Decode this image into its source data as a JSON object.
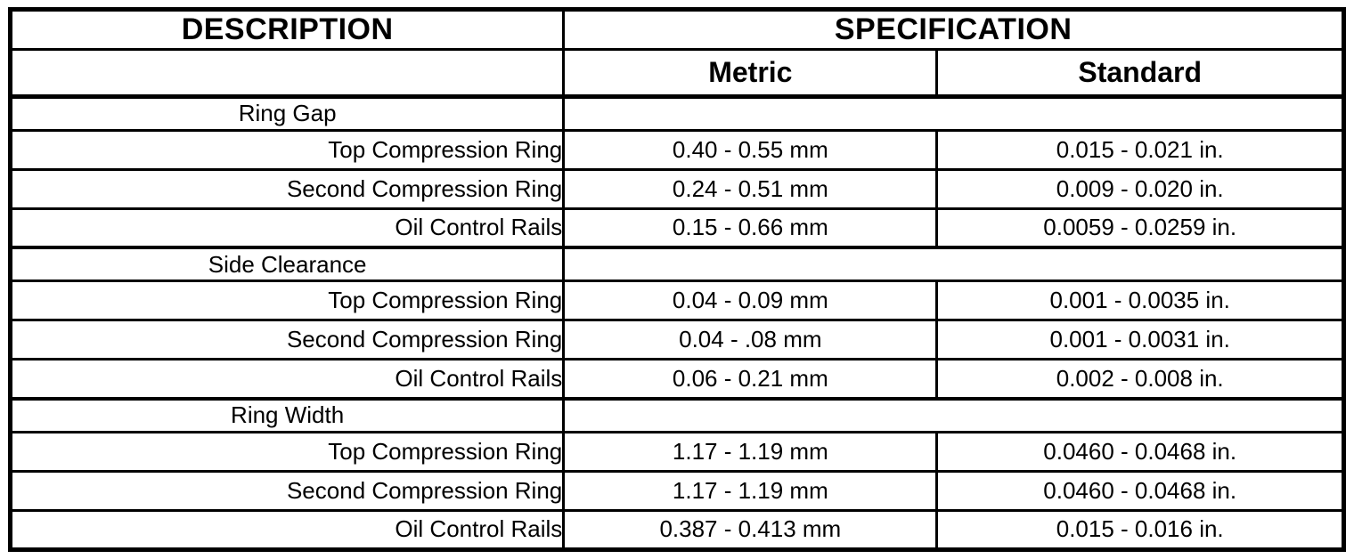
{
  "page": {
    "background_color": "#ffffff",
    "line_color": "#000000"
  },
  "table": {
    "title_row": {
      "description": "DESCRIPTION",
      "specification": "SPECIFICATION"
    },
    "subheader_row": {
      "metric": "Metric",
      "standard": "Standard"
    },
    "sections": [
      {
        "title": "Ring Gap",
        "rows": [
          {
            "label": "Top Compression Ring",
            "metric": "0.40 - 0.55 mm",
            "standard": "0.015 - 0.021 in."
          },
          {
            "label": "Second Compression Ring",
            "metric": "0.24 - 0.51 mm",
            "standard": "0.009 - 0.020 in."
          },
          {
            "label": "Oil Control Rails",
            "metric": "0.15 - 0.66 mm",
            "standard": "0.0059 - 0.0259 in."
          }
        ]
      },
      {
        "title": "Side Clearance",
        "rows": [
          {
            "label": "Top Compression Ring",
            "metric": "0.04 - 0.09 mm",
            "standard": "0.001 - 0.0035 in."
          },
          {
            "label": "Second Compression Ring",
            "metric": "0.04 - .08 mm",
            "standard": "0.001 - 0.0031 in."
          },
          {
            "label": "Oil Control Rails",
            "metric": "0.06 - 0.21 mm",
            "standard": "0.002 - 0.008 in."
          }
        ]
      },
      {
        "title": "Ring Width",
        "rows": [
          {
            "label": "Top Compression Ring",
            "metric": "1.17 - 1.19 mm",
            "standard": "0.0460 - 0.0468 in."
          },
          {
            "label": "Second Compression Ring",
            "metric": "1.17 - 1.19 mm",
            "standard": "0.0460 - 0.0468 in."
          },
          {
            "label": "Oil Control Rails",
            "metric": "0.387 - 0.413 mm",
            "standard": "0.015 - 0.016 in."
          }
        ]
      }
    ]
  }
}
